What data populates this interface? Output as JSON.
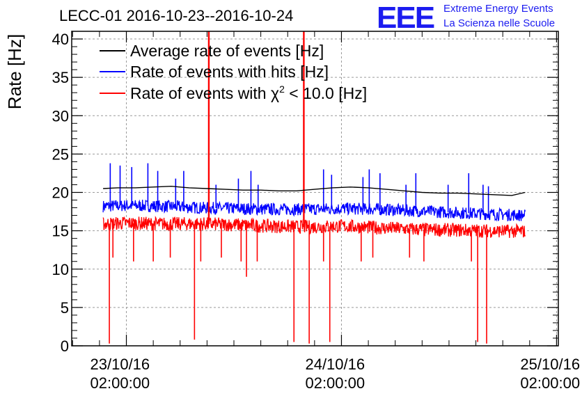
{
  "chart_data": {
    "type": "line",
    "title": "LECC-01 2016-10-23--2016-10-24",
    "ylabel": "Rate [Hz]",
    "xlabel": "",
    "ylim": [
      0,
      41
    ],
    "yticks": [
      0,
      5,
      10,
      15,
      20,
      25,
      30,
      35,
      40
    ],
    "grid": true,
    "legend_position": "top-left",
    "x_tick_labels": [
      {
        "date": "23/10/16",
        "time": "02:00:00",
        "hours": 0
      },
      {
        "date": "24/10/16",
        "time": "02:00:00",
        "hours": 24
      },
      {
        "date": "25/10/16",
        "time": "02:00:00",
        "hours": 48
      }
    ],
    "xlim_hours": [
      -6.1,
      48.2
    ],
    "series": [
      {
        "name": "Average rate of events [Hz]",
        "name_prefix": "Average rate of events [Hz]",
        "color": "#000000",
        "x": [
          -2.6,
          -1,
          1,
          3,
          5,
          7,
          9,
          11,
          13,
          15,
          17,
          19,
          21,
          23,
          25,
          27,
          29,
          31,
          33,
          35,
          37,
          39,
          41,
          43,
          44.5
        ],
        "y": [
          20.5,
          20.6,
          20.6,
          20.7,
          20.8,
          20.6,
          20.5,
          20.4,
          20.3,
          20.3,
          20.2,
          20.2,
          20.4,
          20.6,
          20.7,
          20.6,
          20.4,
          20.2,
          20.0,
          19.9,
          19.9,
          19.8,
          19.7,
          19.6,
          20.0
        ]
      },
      {
        "name": "Rate of events with hits [Hz]",
        "name_prefix": "Rate of events with hits [Hz]",
        "color": "#0000ff",
        "x": [
          -2.6,
          0,
          4,
          8,
          12,
          16,
          20,
          24,
          28,
          32,
          36,
          40,
          44.5
        ],
        "y": [
          18.2,
          18.3,
          18.2,
          18.0,
          17.9,
          17.8,
          17.8,
          17.9,
          17.8,
          17.6,
          17.4,
          17.2,
          17.0
        ],
        "spikes_up": [
          {
            "x": -1.8,
            "y": 23.8
          },
          {
            "x": -0.7,
            "y": 23.5
          },
          {
            "x": 0.6,
            "y": 23.3
          },
          {
            "x": 2.4,
            "y": 23.8
          },
          {
            "x": 3.5,
            "y": 22.8
          },
          {
            "x": 5.5,
            "y": 21.8
          },
          {
            "x": 6.4,
            "y": 22.8
          },
          {
            "x": 10.0,
            "y": 21.0
          },
          {
            "x": 12.5,
            "y": 21.8
          },
          {
            "x": 13.9,
            "y": 22.8
          },
          {
            "x": 14.7,
            "y": 21.0
          },
          {
            "x": 22.0,
            "y": 23.0
          },
          {
            "x": 22.9,
            "y": 22.3
          },
          {
            "x": 26.4,
            "y": 22.0
          },
          {
            "x": 27.1,
            "y": 23.0
          },
          {
            "x": 28.3,
            "y": 22.5
          },
          {
            "x": 31.2,
            "y": 21.0
          },
          {
            "x": 32.3,
            "y": 22.5
          },
          {
            "x": 35.9,
            "y": 21.0
          },
          {
            "x": 38.2,
            "y": 22.5
          },
          {
            "x": 39.8,
            "y": 21.0
          },
          {
            "x": 40.4,
            "y": 20.8
          }
        ]
      },
      {
        "name": "Rate of events with χ² < 10.0 [Hz]",
        "name_prefix": "Rate of events with ",
        "name_chi": "χ",
        "name_sup": "2",
        "name_suffix": " < 10.0 [Hz]",
        "color": "#ff0000",
        "x": [
          -2.6,
          0,
          4,
          8,
          12,
          16,
          20,
          24,
          28,
          32,
          36,
          40,
          44.5
        ],
        "y": [
          15.9,
          16.0,
          15.9,
          15.9,
          15.8,
          15.6,
          15.5,
          15.6,
          15.4,
          15.2,
          15.1,
          15.0,
          14.9
        ],
        "spikes_down": [
          {
            "x": -1.9,
            "y": 0.3
          },
          {
            "x": -1.5,
            "y": 11.5
          },
          {
            "x": 0.8,
            "y": 11.0
          },
          {
            "x": 3.0,
            "y": 11.0
          },
          {
            "x": 4.9,
            "y": 11.5
          },
          {
            "x": 7.6,
            "y": 0.8
          },
          {
            "x": 8.3,
            "y": 11.0
          },
          {
            "x": 10.6,
            "y": 11.5
          },
          {
            "x": 12.8,
            "y": 11.0
          },
          {
            "x": 13.4,
            "y": 9.0
          },
          {
            "x": 14.6,
            "y": 11.0
          },
          {
            "x": 18.7,
            "y": 0.5
          },
          {
            "x": 20.4,
            "y": 0.3
          },
          {
            "x": 22.0,
            "y": 11.0
          },
          {
            "x": 22.7,
            "y": 0.5
          },
          {
            "x": 26.2,
            "y": 11.0
          },
          {
            "x": 27.5,
            "y": 11.5
          },
          {
            "x": 31.6,
            "y": 11.5
          },
          {
            "x": 33.2,
            "y": 11.0
          },
          {
            "x": 38.5,
            "y": 11.0
          },
          {
            "x": 39.2,
            "y": 0.5
          },
          {
            "x": 40.2,
            "y": 0.3
          }
        ],
        "spikes_up": [
          {
            "x": 9.2,
            "y": 41
          },
          {
            "x": 19.8,
            "y": 41
          }
        ]
      }
    ]
  },
  "logo": {
    "letters": "EEE",
    "line1": "Extreme Energy Events",
    "line2": "La Scienza nelle Scuole",
    "color": "#1c1cf0"
  }
}
